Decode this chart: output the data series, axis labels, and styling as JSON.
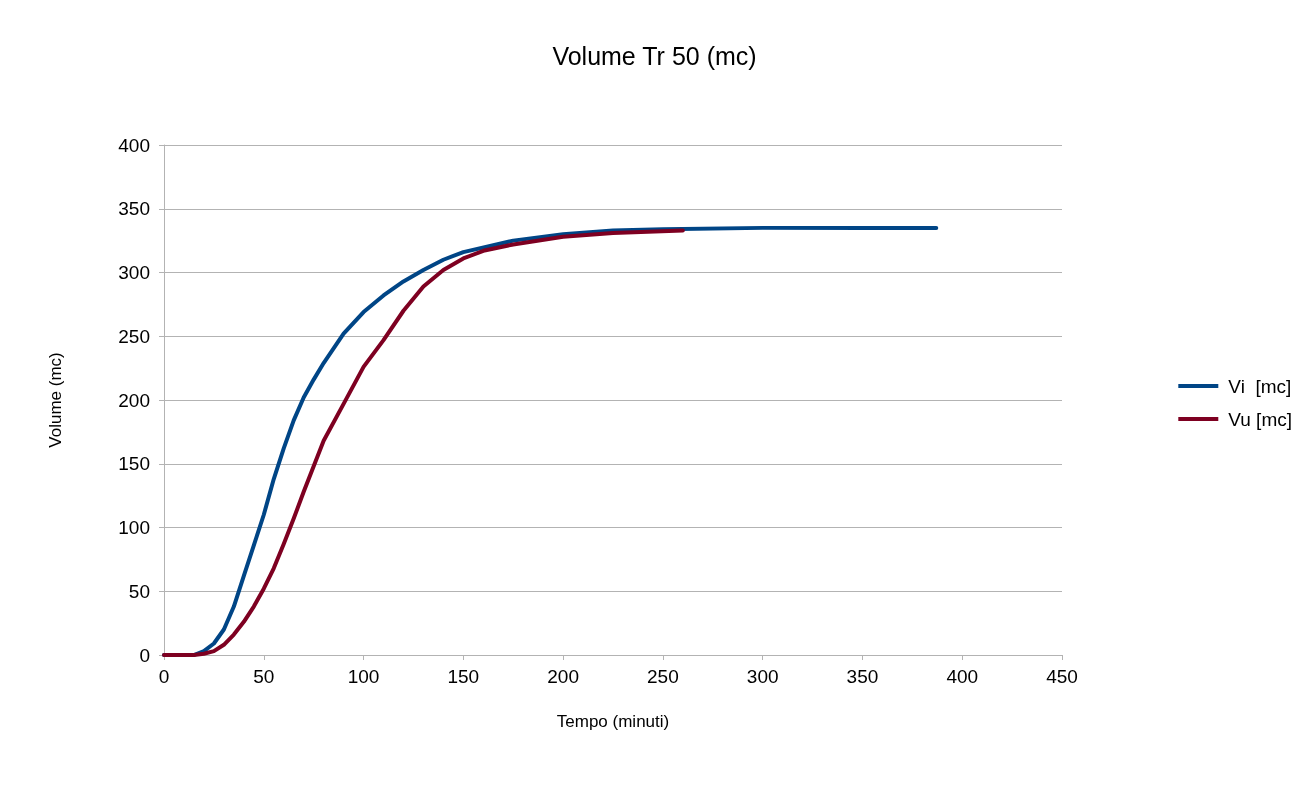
{
  "chart_data": {
    "type": "line",
    "title": "Volume Tr 50 (mc)",
    "xlabel": "Tempo (minuti)",
    "ylabel": "Volume (mc)",
    "xlim": [
      0,
      450
    ],
    "xticks": [
      0,
      50,
      100,
      150,
      200,
      250,
      300,
      350,
      400,
      450
    ],
    "ylim": [
      0,
      400
    ],
    "yticks": [
      0,
      50,
      100,
      150,
      200,
      250,
      300,
      350,
      400
    ],
    "grid": "y",
    "legend": "right",
    "marker": "none",
    "line_style": "solid",
    "series": [
      {
        "name": "Vi  [mc]",
        "color": "#004586",
        "x": [
          0,
          10,
          15,
          20,
          25,
          30,
          35,
          40,
          45,
          50,
          55,
          60,
          65,
          70,
          75,
          80,
          90,
          100,
          110,
          120,
          130,
          140,
          150,
          175,
          200,
          225,
          250,
          300,
          350,
          387
        ],
        "values": [
          0,
          0,
          0,
          3,
          9,
          20,
          38,
          62,
          86,
          110,
          138,
          162,
          184,
          202,
          216,
          229,
          252,
          269,
          282,
          293,
          302,
          310,
          316,
          325,
          330,
          333,
          334,
          335,
          335,
          335
        ]
      },
      {
        "name": "Vu [mc]",
        "color": "#7e0021",
        "x": [
          0,
          15,
          20,
          25,
          30,
          35,
          40,
          45,
          50,
          55,
          60,
          65,
          70,
          75,
          80,
          90,
          100,
          110,
          120,
          130,
          140,
          150,
          160,
          175,
          200,
          225,
          260
        ],
        "values": [
          0,
          0,
          1,
          3,
          8,
          16,
          26,
          38,
          52,
          68,
          87,
          107,
          128,
          148,
          168,
          197,
          226,
          247,
          270,
          289,
          302,
          311,
          317,
          322,
          328,
          331,
          333
        ]
      }
    ]
  }
}
